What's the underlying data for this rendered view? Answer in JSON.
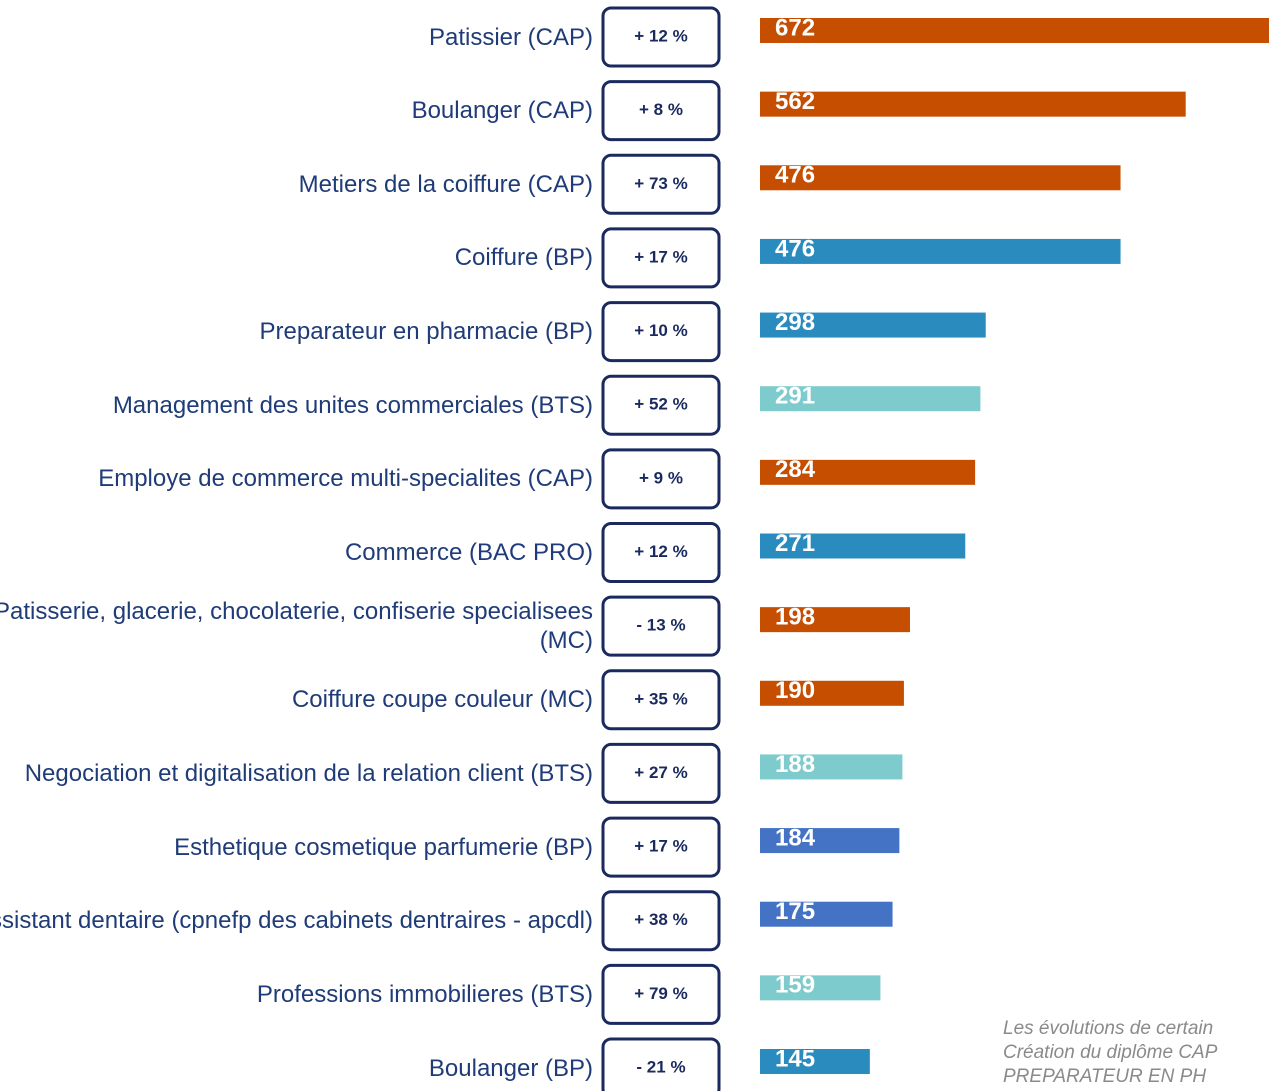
{
  "chart_data": {
    "type": "bar",
    "orientation": "horizontal",
    "categories": [
      "Patissier (CAP)",
      "Boulanger (CAP)",
      "Metiers de la coiffure (CAP)",
      "Coiffure (BP)",
      "Preparateur en pharmacie (BP)",
      "Management des unites commerciales (BTS)",
      "Employe de commerce multi-specialites (CAP)",
      "Commerce (BAC PRO)",
      "Patisserie, glacerie, chocolaterie, confiserie specialisees (MC)",
      "Coiffure coupe couleur (MC)",
      "Negociation et digitalisation de la relation client (BTS)",
      "Esthetique cosmetique parfumerie (BP)",
      "Assistant dentaire (cpnefp des cabinets dentraires - apcdl)",
      "Professions immobilieres (BTS)",
      "Boulanger (BP)"
    ],
    "values": [
      672,
      562,
      476,
      476,
      298,
      291,
      284,
      271,
      198,
      190,
      188,
      184,
      175,
      159,
      145
    ],
    "colors": [
      "#c54e00",
      "#c54e00",
      "#c54e00",
      "#2a8bbf",
      "#2a8bbf",
      "#7ecbcd",
      "#c54e00",
      "#2a8bbf",
      "#c54e00",
      "#c54e00",
      "#7ecbcd",
      "#4472c4",
      "#4472c4",
      "#7ecbcd",
      "#2a8bbf"
    ],
    "changes": [
      "+ 12 %",
      "+ 8 %",
      "+ 73 %",
      "+ 17 %",
      "+ 10 %",
      "+ 52 %",
      "+ 9 %",
      "+ 12 %",
      "- 13 %",
      "+ 35 %",
      "+ 27 %",
      "+ 17 %",
      "+ 38 %",
      "+ 79 %",
      "- 21 %"
    ],
    "note": [
      "Les évolutions de certain",
      "Création du diplôme CAP",
      "PREPARATEUR EN PH"
    ]
  }
}
